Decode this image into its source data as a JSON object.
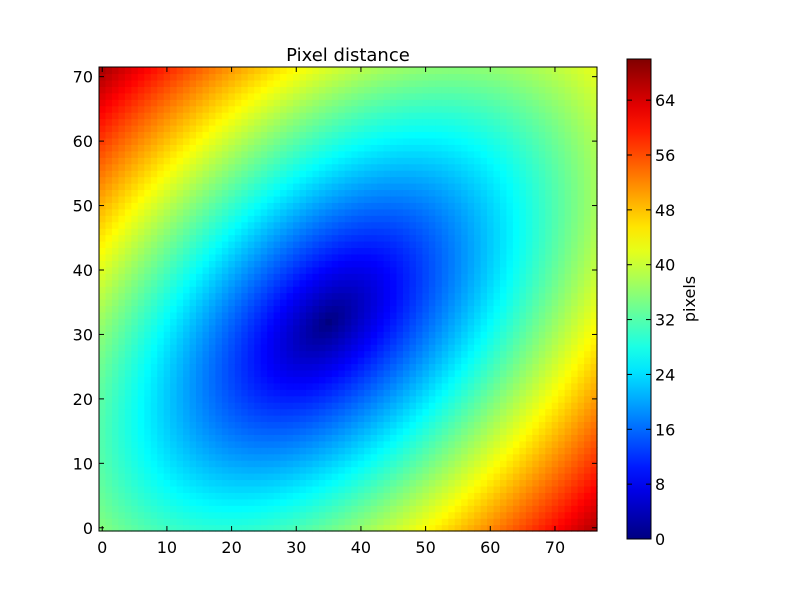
{
  "chart_data": {
    "type": "heatmap",
    "title": "Pixel distance",
    "xlabel": "",
    "ylabel": "",
    "xlim": [
      -0.5,
      76.5
    ],
    "ylim": [
      -0.5,
      71.5
    ],
    "x_ticks": [
      0,
      10,
      20,
      30,
      40,
      50,
      60,
      70
    ],
    "y_ticks": [
      0,
      10,
      20,
      30,
      40,
      50,
      60,
      70
    ],
    "grid": false,
    "colormap": "jet",
    "origin": "lower",
    "data_size": {
      "cols": 77,
      "rows": 72
    },
    "distance_model": {
      "center": [
        35,
        32
      ],
      "anisotropic_axes": [
        [
          1,
          1,
          0.74
        ],
        [
          1,
          -1,
          1.28
        ]
      ]
    },
    "colorbar": {
      "label": "pixels",
      "range": [
        0,
        70
      ],
      "ticks": [
        0,
        8,
        16,
        24,
        32,
        40,
        48,
        56,
        64
      ]
    }
  }
}
